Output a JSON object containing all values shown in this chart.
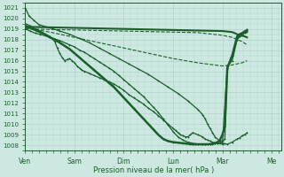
{
  "bg_color": "#cce8e0",
  "grid_color": "#aacccc",
  "line_color": "#1a5e2a",
  "xlabel": "Pression niveau de la mer( hPa )",
  "xlim": [
    0,
    5.2
  ],
  "ylim": [
    1007.5,
    1021.5
  ],
  "yticks": [
    1008,
    1009,
    1010,
    1011,
    1012,
    1013,
    1014,
    1015,
    1016,
    1017,
    1018,
    1019,
    1020,
    1021
  ],
  "xtick_labels": [
    "Ven",
    "Sam",
    "Dim",
    "Lun",
    "Mar",
    "Me"
  ],
  "xtick_positions": [
    0.0,
    1.0,
    2.0,
    3.0,
    4.0,
    5.0
  ],
  "series": [
    {
      "x": [
        0.0,
        0.08,
        0.18,
        0.28,
        0.5,
        0.7,
        0.9,
        1.1,
        1.3,
        1.5,
        1.7,
        1.9,
        2.1,
        2.3,
        2.5,
        2.7,
        2.9,
        3.1,
        3.3,
        3.5,
        3.6,
        3.65,
        3.7,
        3.75,
        3.8,
        3.85,
        4.0,
        4.05,
        4.1,
        4.2,
        4.3,
        4.35,
        4.4,
        4.45,
        4.5
      ],
      "y": [
        1021.0,
        1020.2,
        1019.8,
        1019.4,
        1019.1,
        1018.8,
        1018.5,
        1018.1,
        1017.7,
        1017.2,
        1016.7,
        1016.2,
        1015.7,
        1015.2,
        1014.7,
        1014.1,
        1013.5,
        1012.9,
        1012.2,
        1011.4,
        1010.9,
        1010.5,
        1010.0,
        1009.6,
        1009.2,
        1008.8,
        1008.2,
        1008.15,
        1008.1,
        1008.3,
        1008.6,
        1008.7,
        1008.9,
        1009.0,
        1009.2
      ],
      "style": "solid",
      "lw": 0.9,
      "marker": "+"
    },
    {
      "x": [
        0.0,
        0.5,
        1.0,
        1.5,
        2.0,
        2.5,
        3.0,
        3.5,
        4.0,
        4.2,
        4.3,
        4.35,
        4.4,
        4.45,
        4.5
      ],
      "y": [
        1019.2,
        1019.15,
        1019.1,
        1019.05,
        1019.0,
        1018.95,
        1018.9,
        1018.85,
        1018.8,
        1018.7,
        1018.5,
        1018.4,
        1018.35,
        1018.3,
        1018.2
      ],
      "style": "solid",
      "lw": 1.5,
      "marker": null
    },
    {
      "x": [
        0.0,
        0.5,
        1.0,
        1.5,
        2.0,
        2.5,
        3.0,
        3.5,
        4.0,
        4.2,
        4.3,
        4.4,
        4.5
      ],
      "y": [
        1019.0,
        1018.95,
        1018.9,
        1018.85,
        1018.8,
        1018.75,
        1018.7,
        1018.65,
        1018.4,
        1018.2,
        1018.0,
        1017.8,
        1017.5
      ],
      "style": "dashed",
      "lw": 0.8,
      "marker": null
    },
    {
      "x": [
        0.0,
        0.5,
        1.0,
        1.5,
        2.0,
        2.5,
        3.0,
        3.5,
        4.0,
        4.2,
        4.3,
        4.4,
        4.5
      ],
      "y": [
        1019.1,
        1018.7,
        1018.2,
        1017.7,
        1017.2,
        1016.7,
        1016.2,
        1015.8,
        1015.5,
        1015.6,
        1015.7,
        1015.8,
        1016.0
      ],
      "style": "dashed",
      "lw": 0.8,
      "marker": null
    },
    {
      "x": [
        0.0,
        0.1,
        0.2,
        0.3,
        0.4,
        0.5,
        0.6,
        0.65,
        0.7,
        0.75,
        0.8,
        0.85,
        0.9,
        0.95,
        1.0,
        1.05,
        1.1,
        1.15,
        1.2,
        1.3,
        1.4,
        1.5,
        1.6,
        1.7,
        1.8,
        1.9,
        2.0,
        2.1,
        2.2,
        2.3,
        2.4,
        2.5,
        2.6,
        2.7,
        2.8,
        2.9,
        3.0,
        3.05,
        3.1,
        3.15,
        3.2,
        3.25,
        3.3,
        3.35,
        3.4,
        3.5,
        3.6,
        3.65,
        3.7,
        3.75,
        3.8,
        3.9,
        4.0,
        4.1,
        4.2,
        4.3,
        4.35,
        4.4,
        4.45,
        4.5
      ],
      "y": [
        1019.5,
        1019.3,
        1019.0,
        1018.8,
        1018.5,
        1018.3,
        1017.8,
        1017.2,
        1016.7,
        1016.3,
        1016.0,
        1016.1,
        1016.2,
        1016.0,
        1015.8,
        1015.5,
        1015.3,
        1015.1,
        1015.0,
        1014.8,
        1014.6,
        1014.4,
        1014.2,
        1014.0,
        1013.8,
        1013.5,
        1013.2,
        1012.8,
        1012.5,
        1012.2,
        1011.9,
        1011.5,
        1011.2,
        1010.8,
        1010.4,
        1010.0,
        1009.6,
        1009.4,
        1009.2,
        1009.0,
        1008.9,
        1008.8,
        1008.8,
        1009.0,
        1009.2,
        1009.0,
        1008.8,
        1008.6,
        1008.5,
        1008.4,
        1008.3,
        1008.2,
        1008.1,
        1015.5,
        1016.0,
        1018.0,
        1018.3,
        1018.5,
        1018.6,
        1018.7
      ],
      "style": "solid",
      "lw": 0.9,
      "marker": "+"
    },
    {
      "x": [
        0.0,
        0.1,
        0.2,
        0.3,
        0.5,
        0.7,
        0.9,
        1.0,
        1.1,
        1.2,
        1.3,
        1.4,
        1.5,
        1.6,
        1.7,
        1.8,
        1.9,
        2.0,
        2.1,
        2.2,
        2.3,
        2.4,
        2.5,
        2.6,
        2.7,
        2.8,
        2.9,
        3.0,
        3.1,
        3.2,
        3.3,
        3.4,
        3.45,
        3.5,
        3.6,
        3.65,
        3.7,
        3.75,
        3.8,
        3.85,
        3.9,
        3.95,
        4.0,
        4.05,
        4.1,
        4.2,
        4.3,
        4.35,
        4.4,
        4.45,
        4.5
      ],
      "y": [
        1019.0,
        1018.8,
        1018.6,
        1018.5,
        1018.2,
        1017.9,
        1017.5,
        1017.3,
        1017.0,
        1016.8,
        1016.5,
        1016.2,
        1015.9,
        1015.6,
        1015.3,
        1015.0,
        1014.6,
        1014.2,
        1013.8,
        1013.4,
        1013.0,
        1012.6,
        1012.1,
        1011.6,
        1011.1,
        1010.5,
        1009.9,
        1009.3,
        1008.8,
        1008.5,
        1008.3,
        1008.2,
        1008.15,
        1008.1,
        1008.1,
        1008.1,
        1008.1,
        1008.1,
        1008.1,
        1008.15,
        1008.2,
        1008.3,
        1008.4,
        1008.6,
        1015.2,
        1016.5,
        1018.0,
        1018.3,
        1018.5,
        1018.6,
        1018.8
      ],
      "style": "solid",
      "lw": 0.9,
      "marker": "+"
    },
    {
      "x": [
        0.0,
        0.1,
        0.2,
        0.3,
        0.4,
        0.5,
        0.6,
        0.7,
        0.8,
        0.9,
        1.0,
        1.1,
        1.2,
        1.3,
        1.4,
        1.5,
        1.6,
        1.7,
        1.8,
        1.9,
        2.0,
        2.1,
        2.2,
        2.3,
        2.4,
        2.5,
        2.6,
        2.7,
        2.8,
        2.9,
        3.0,
        3.1,
        3.2,
        3.25,
        3.3,
        3.35,
        3.4,
        3.45,
        3.5,
        3.55,
        3.6,
        3.65,
        3.7,
        3.75,
        3.8,
        3.85,
        3.9,
        3.95,
        4.0,
        4.05,
        4.1,
        4.2,
        4.3,
        4.35,
        4.4,
        4.45,
        4.5
      ],
      "y": [
        1019.3,
        1019.1,
        1018.9,
        1018.7,
        1018.5,
        1018.2,
        1018.0,
        1017.7,
        1017.4,
        1017.1,
        1016.7,
        1016.3,
        1015.9,
        1015.5,
        1015.1,
        1014.7,
        1014.3,
        1013.9,
        1013.5,
        1013.0,
        1012.5,
        1012.0,
        1011.5,
        1011.0,
        1010.5,
        1010.0,
        1009.5,
        1009.0,
        1008.6,
        1008.4,
        1008.3,
        1008.25,
        1008.2,
        1008.18,
        1008.15,
        1008.12,
        1008.1,
        1008.1,
        1008.1,
        1008.1,
        1008.1,
        1008.1,
        1008.1,
        1008.12,
        1008.15,
        1008.2,
        1008.3,
        1008.5,
        1009.0,
        1009.8,
        1015.3,
        1016.5,
        1018.3,
        1018.5,
        1018.6,
        1018.75,
        1018.9
      ],
      "style": "solid",
      "lw": 1.8,
      "marker": "+"
    }
  ]
}
